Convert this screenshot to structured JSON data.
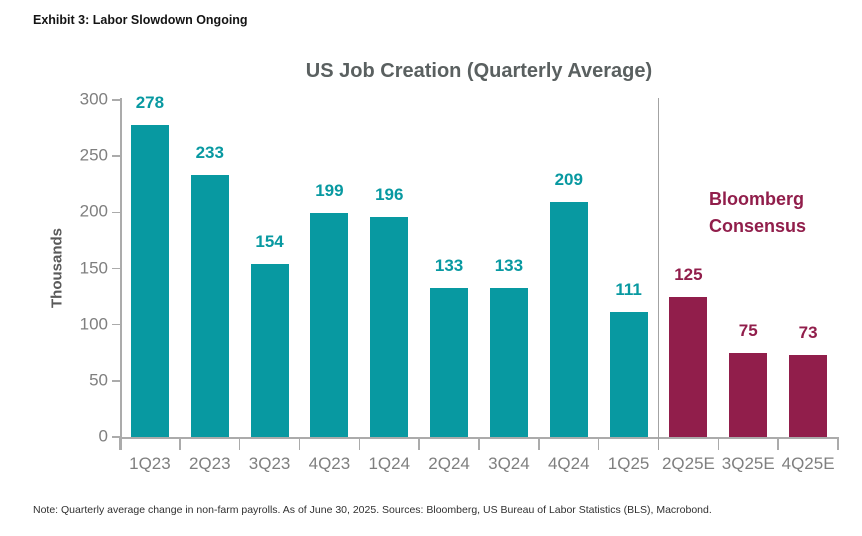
{
  "exhibit_title": "Exhibit 3: Labor Slowdown Ongoing",
  "footnote": "Note: Quarterly average change in non-farm payrolls. As of June 30, 2025. Sources: Bloomberg, US Bureau of Labor Statistics (BLS), Macrobond.",
  "chart_data": {
    "type": "bar",
    "title": "US Job Creation (Quarterly Average)",
    "ylabel": "Thousands",
    "xlabel": "",
    "ylim": [
      0,
      300
    ],
    "yticks": [
      0,
      50,
      100,
      150,
      200,
      250,
      300
    ],
    "grid": false,
    "legend_position": "none",
    "categories": [
      "1Q23",
      "2Q23",
      "3Q23",
      "4Q23",
      "1Q24",
      "2Q24",
      "3Q24",
      "4Q24",
      "1Q25",
      "2Q25E",
      "3Q25E",
      "4Q25E"
    ],
    "values": [
      278,
      233,
      154,
      199,
      196,
      133,
      133,
      209,
      111,
      125,
      75,
      73
    ],
    "bar_types": [
      "actual",
      "actual",
      "actual",
      "actual",
      "actual",
      "actual",
      "actual",
      "actual",
      "actual",
      "estimate",
      "estimate",
      "estimate"
    ],
    "colors": {
      "actual": "#0899A1",
      "estimate": "#911E4B"
    },
    "annotation": {
      "line1": "Bloomberg",
      "line2": "Consensus"
    }
  }
}
